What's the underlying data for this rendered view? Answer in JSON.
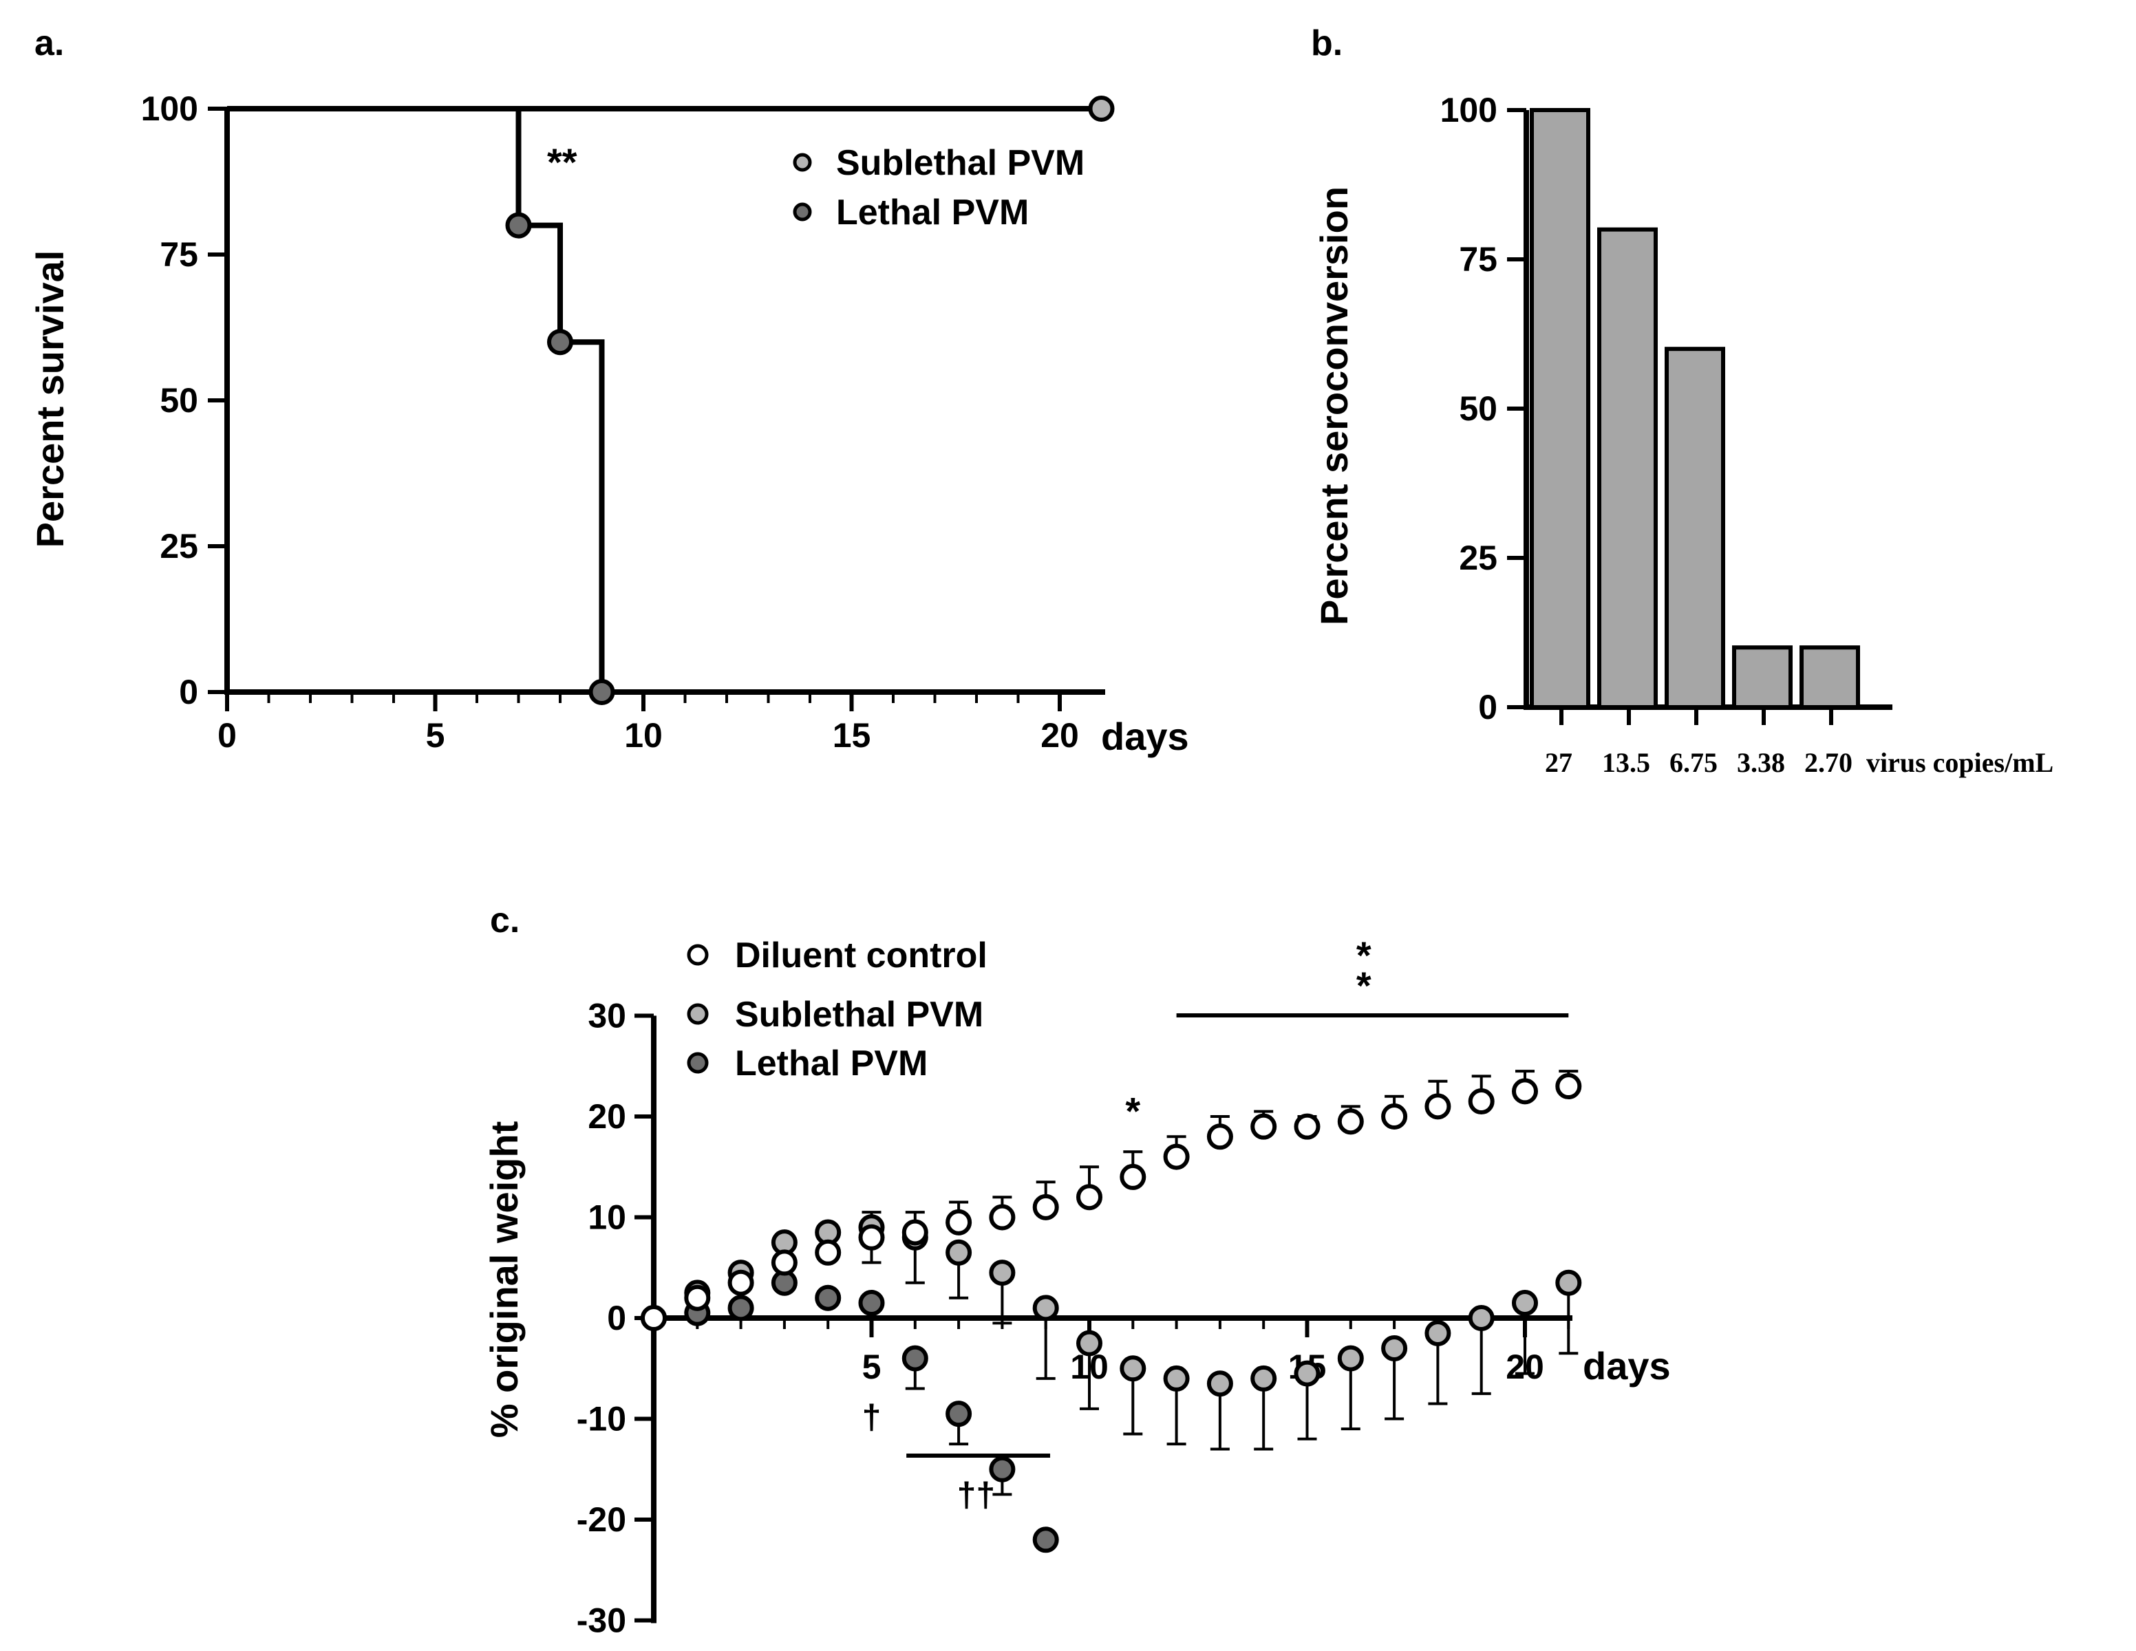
{
  "colors": {
    "axis": "#000000",
    "sublethal": "#b4b4b4",
    "lethal": "#6e6e6e",
    "diluent": "#ffffff",
    "bar": "#a6a6a6"
  },
  "chart_data": [
    {
      "panel": "a.",
      "type": "line",
      "subtype": "kaplan-meier",
      "ylabel": "Percent survival",
      "xlabel": "days",
      "xlim": [
        0,
        21
      ],
      "ylim": [
        0,
        100
      ],
      "xticks": [
        "0",
        "5",
        "10",
        "15",
        "20"
      ],
      "yticks": [
        "0",
        "25",
        "50",
        "75",
        "100"
      ],
      "annotation": "**",
      "legend": [
        "Sublethal PVM",
        "Lethal PVM"
      ],
      "series": [
        {
          "name": "Sublethal PVM",
          "x": [
            0,
            21
          ],
          "y": [
            100,
            100
          ],
          "markers": [
            {
              "x": 21,
              "y": 100
            }
          ]
        },
        {
          "name": "Lethal PVM",
          "x": [
            0,
            7,
            7,
            8,
            8,
            9,
            9,
            21
          ],
          "y": [
            100,
            100,
            80,
            80,
            60,
            60,
            0,
            0
          ],
          "markers": [
            {
              "x": 7,
              "y": 80
            },
            {
              "x": 8,
              "y": 60
            },
            {
              "x": 9,
              "y": 0
            }
          ]
        }
      ]
    },
    {
      "panel": "b.",
      "type": "bar",
      "ylabel": "Percent seroconversion",
      "xlabel": "virus copies/mL",
      "categories": [
        "27",
        "13.5",
        "6.75",
        "3.38",
        "2.70"
      ],
      "values": [
        100,
        80,
        60,
        10,
        10
      ],
      "ylim": [
        0,
        100
      ],
      "yticks": [
        "0",
        "25",
        "50",
        "75",
        "100"
      ]
    },
    {
      "panel": "c.",
      "type": "scatter",
      "ylabel": "% original weight",
      "xlabel": "days",
      "xlim": [
        0,
        21
      ],
      "ylim": [
        -30,
        30
      ],
      "xticks": [
        "5",
        "10",
        "15",
        "20"
      ],
      "yticks": [
        "30",
        "20",
        "10",
        "0",
        "-10",
        "-20",
        "-30"
      ],
      "legend": [
        "Diluent control",
        "Sublethal PVM",
        "Lethal PVM"
      ],
      "annotations": {
        "single_star": "*",
        "double_star": "*\n*",
        "dagger": "†",
        "double_dagger": "††"
      },
      "series": [
        {
          "name": "Diluent control",
          "x": [
            0,
            1,
            2,
            3,
            4,
            5,
            6,
            7,
            8,
            9,
            10,
            11,
            12,
            13,
            14,
            15,
            16,
            17,
            18,
            19,
            20,
            21
          ],
          "y": [
            0,
            2,
            3.5,
            5.5,
            6.5,
            8,
            8.5,
            9.5,
            10,
            11,
            12,
            14,
            16,
            18,
            19,
            19,
            19.5,
            20,
            21,
            21.5,
            22.5,
            23
          ],
          "err": [
            0,
            0.5,
            1,
            1.5,
            2,
            2.5,
            2,
            2,
            2,
            2.5,
            3,
            2.5,
            2,
            2,
            1.5,
            1,
            1.5,
            2,
            2.5,
            2.5,
            2,
            1.5
          ]
        },
        {
          "name": "Sublethal PVM",
          "x": [
            0,
            1,
            2,
            3,
            4,
            5,
            6,
            7,
            8,
            9,
            10,
            11,
            12,
            13,
            14,
            15,
            16,
            17,
            18,
            19,
            20,
            21
          ],
          "y": [
            0,
            2.5,
            4.5,
            7.5,
            8.5,
            9,
            8,
            6.5,
            4.5,
            1,
            -2.5,
            -5,
            -6,
            -6.5,
            -6,
            -5.5,
            -4,
            -3,
            -1.5,
            0,
            1.5,
            3.5
          ],
          "err": [
            0,
            0.5,
            1,
            1.5,
            2,
            3.5,
            4.5,
            4.5,
            5,
            7,
            6.5,
            6.5,
            6.5,
            6.5,
            7,
            6.5,
            7,
            7,
            7,
            7.5,
            7,
            7
          ]
        },
        {
          "name": "Lethal PVM",
          "x": [
            0,
            1,
            2,
            3,
            4,
            5,
            6,
            7,
            8,
            9
          ],
          "y": [
            0,
            0.5,
            1,
            3.5,
            2,
            1.5,
            -4,
            -9.5,
            -15,
            -22
          ],
          "err": [
            0,
            0.5,
            0.5,
            0.5,
            0.5,
            0.5,
            3,
            3,
            2.5,
            0
          ]
        }
      ]
    }
  ]
}
